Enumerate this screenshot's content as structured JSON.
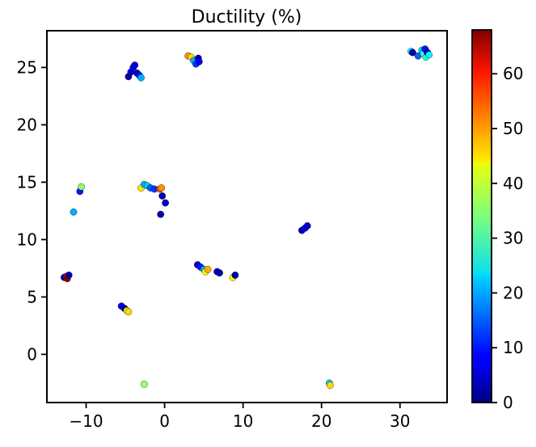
{
  "chart_data": {
    "type": "scatter",
    "title": "Ductility (%)",
    "xlabel": "",
    "ylabel": "",
    "xlim": [
      -15,
      36
    ],
    "ylim": [
      -4.2,
      28.2
    ],
    "x_ticks": [
      -10,
      0,
      10,
      20,
      30
    ],
    "x_tick_labels": [
      "−10",
      "0",
      "10",
      "20",
      "30"
    ],
    "y_ticks": [
      0,
      5,
      10,
      15,
      20,
      25
    ],
    "y_tick_labels": [
      "0",
      "5",
      "10",
      "15",
      "20",
      "25"
    ],
    "grid": false,
    "colorbar": {
      "colormap": "jet",
      "range": [
        0,
        68
      ],
      "ticks": [
        0,
        10,
        20,
        30,
        40,
        50,
        60
      ],
      "tick_labels": [
        "0",
        "10",
        "20",
        "30",
        "40",
        "50",
        "60"
      ],
      "placement": "right"
    },
    "points": [
      {
        "x": -4.6,
        "y": 24.2,
        "c": 2
      },
      {
        "x": -4.3,
        "y": 24.6,
        "c": 5
      },
      {
        "x": -4.0,
        "y": 25.0,
        "c": 8
      },
      {
        "x": -3.8,
        "y": 25.2,
        "c": 6
      },
      {
        "x": -3.5,
        "y": 24.5,
        "c": 4
      },
      {
        "x": -3.2,
        "y": 24.3,
        "c": 10
      },
      {
        "x": -3.0,
        "y": 24.1,
        "c": 20
      },
      {
        "x": 3.0,
        "y": 26.0,
        "c": 50
      },
      {
        "x": 3.4,
        "y": 25.9,
        "c": 45
      },
      {
        "x": 3.7,
        "y": 25.6,
        "c": 20
      },
      {
        "x": 4.0,
        "y": 25.3,
        "c": 12
      },
      {
        "x": 4.3,
        "y": 25.8,
        "c": 3
      },
      {
        "x": 4.4,
        "y": 25.5,
        "c": 8
      },
      {
        "x": 31.4,
        "y": 26.4,
        "c": 25
      },
      {
        "x": 31.6,
        "y": 26.3,
        "c": 3
      },
      {
        "x": 32.3,
        "y": 26.0,
        "c": 15
      },
      {
        "x": 32.8,
        "y": 26.5,
        "c": 22
      },
      {
        "x": 33.0,
        "y": 26.2,
        "c": 30
      },
      {
        "x": 33.2,
        "y": 26.6,
        "c": 10
      },
      {
        "x": 33.3,
        "y": 25.9,
        "c": 28
      },
      {
        "x": 33.5,
        "y": 26.3,
        "c": 5
      },
      {
        "x": 33.7,
        "y": 26.1,
        "c": 25
      },
      {
        "x": -12.8,
        "y": 6.7,
        "c": 4
      },
      {
        "x": -12.5,
        "y": 6.8,
        "c": 64
      },
      {
        "x": -12.4,
        "y": 6.6,
        "c": 67
      },
      {
        "x": -12.2,
        "y": 6.9,
        "c": 3
      },
      {
        "x": -11.6,
        "y": 12.4,
        "c": 20
      },
      {
        "x": -10.8,
        "y": 14.2,
        "c": 10
      },
      {
        "x": -10.6,
        "y": 14.6,
        "c": 35
      },
      {
        "x": -3.0,
        "y": 14.5,
        "c": 44
      },
      {
        "x": -2.6,
        "y": 14.8,
        "c": 20
      },
      {
        "x": -2.2,
        "y": 14.7,
        "c": 22
      },
      {
        "x": -1.8,
        "y": 14.5,
        "c": 15
      },
      {
        "x": -1.3,
        "y": 14.4,
        "c": 12
      },
      {
        "x": -0.6,
        "y": 14.4,
        "c": 54
      },
      {
        "x": -0.4,
        "y": 14.5,
        "c": 50
      },
      {
        "x": -0.3,
        "y": 13.8,
        "c": 3
      },
      {
        "x": 0.1,
        "y": 13.2,
        "c": 5
      },
      {
        "x": -0.5,
        "y": 12.2,
        "c": 3
      },
      {
        "x": -5.5,
        "y": 4.2,
        "c": 8
      },
      {
        "x": -5.1,
        "y": 4.0,
        "c": 3
      },
      {
        "x": -4.8,
        "y": 3.8,
        "c": 42
      },
      {
        "x": -4.6,
        "y": 3.7,
        "c": 45
      },
      {
        "x": -2.6,
        "y": -2.6,
        "c": 36
      },
      {
        "x": 4.2,
        "y": 7.8,
        "c": 5
      },
      {
        "x": 4.6,
        "y": 7.6,
        "c": 10
      },
      {
        "x": 5.0,
        "y": 7.4,
        "c": 20
      },
      {
        "x": 5.2,
        "y": 7.2,
        "c": 42
      },
      {
        "x": 5.5,
        "y": 7.4,
        "c": 48
      },
      {
        "x": 6.7,
        "y": 7.2,
        "c": 5
      },
      {
        "x": 7.0,
        "y": 7.1,
        "c": 3
      },
      {
        "x": 8.7,
        "y": 6.7,
        "c": 42
      },
      {
        "x": 9.0,
        "y": 6.9,
        "c": 3
      },
      {
        "x": 17.5,
        "y": 10.8,
        "c": 3
      },
      {
        "x": 17.9,
        "y": 11.0,
        "c": 8
      },
      {
        "x": 18.2,
        "y": 11.2,
        "c": 5
      },
      {
        "x": 21.0,
        "y": -2.5,
        "c": 22
      },
      {
        "x": 21.1,
        "y": -2.7,
        "c": 45
      }
    ]
  }
}
